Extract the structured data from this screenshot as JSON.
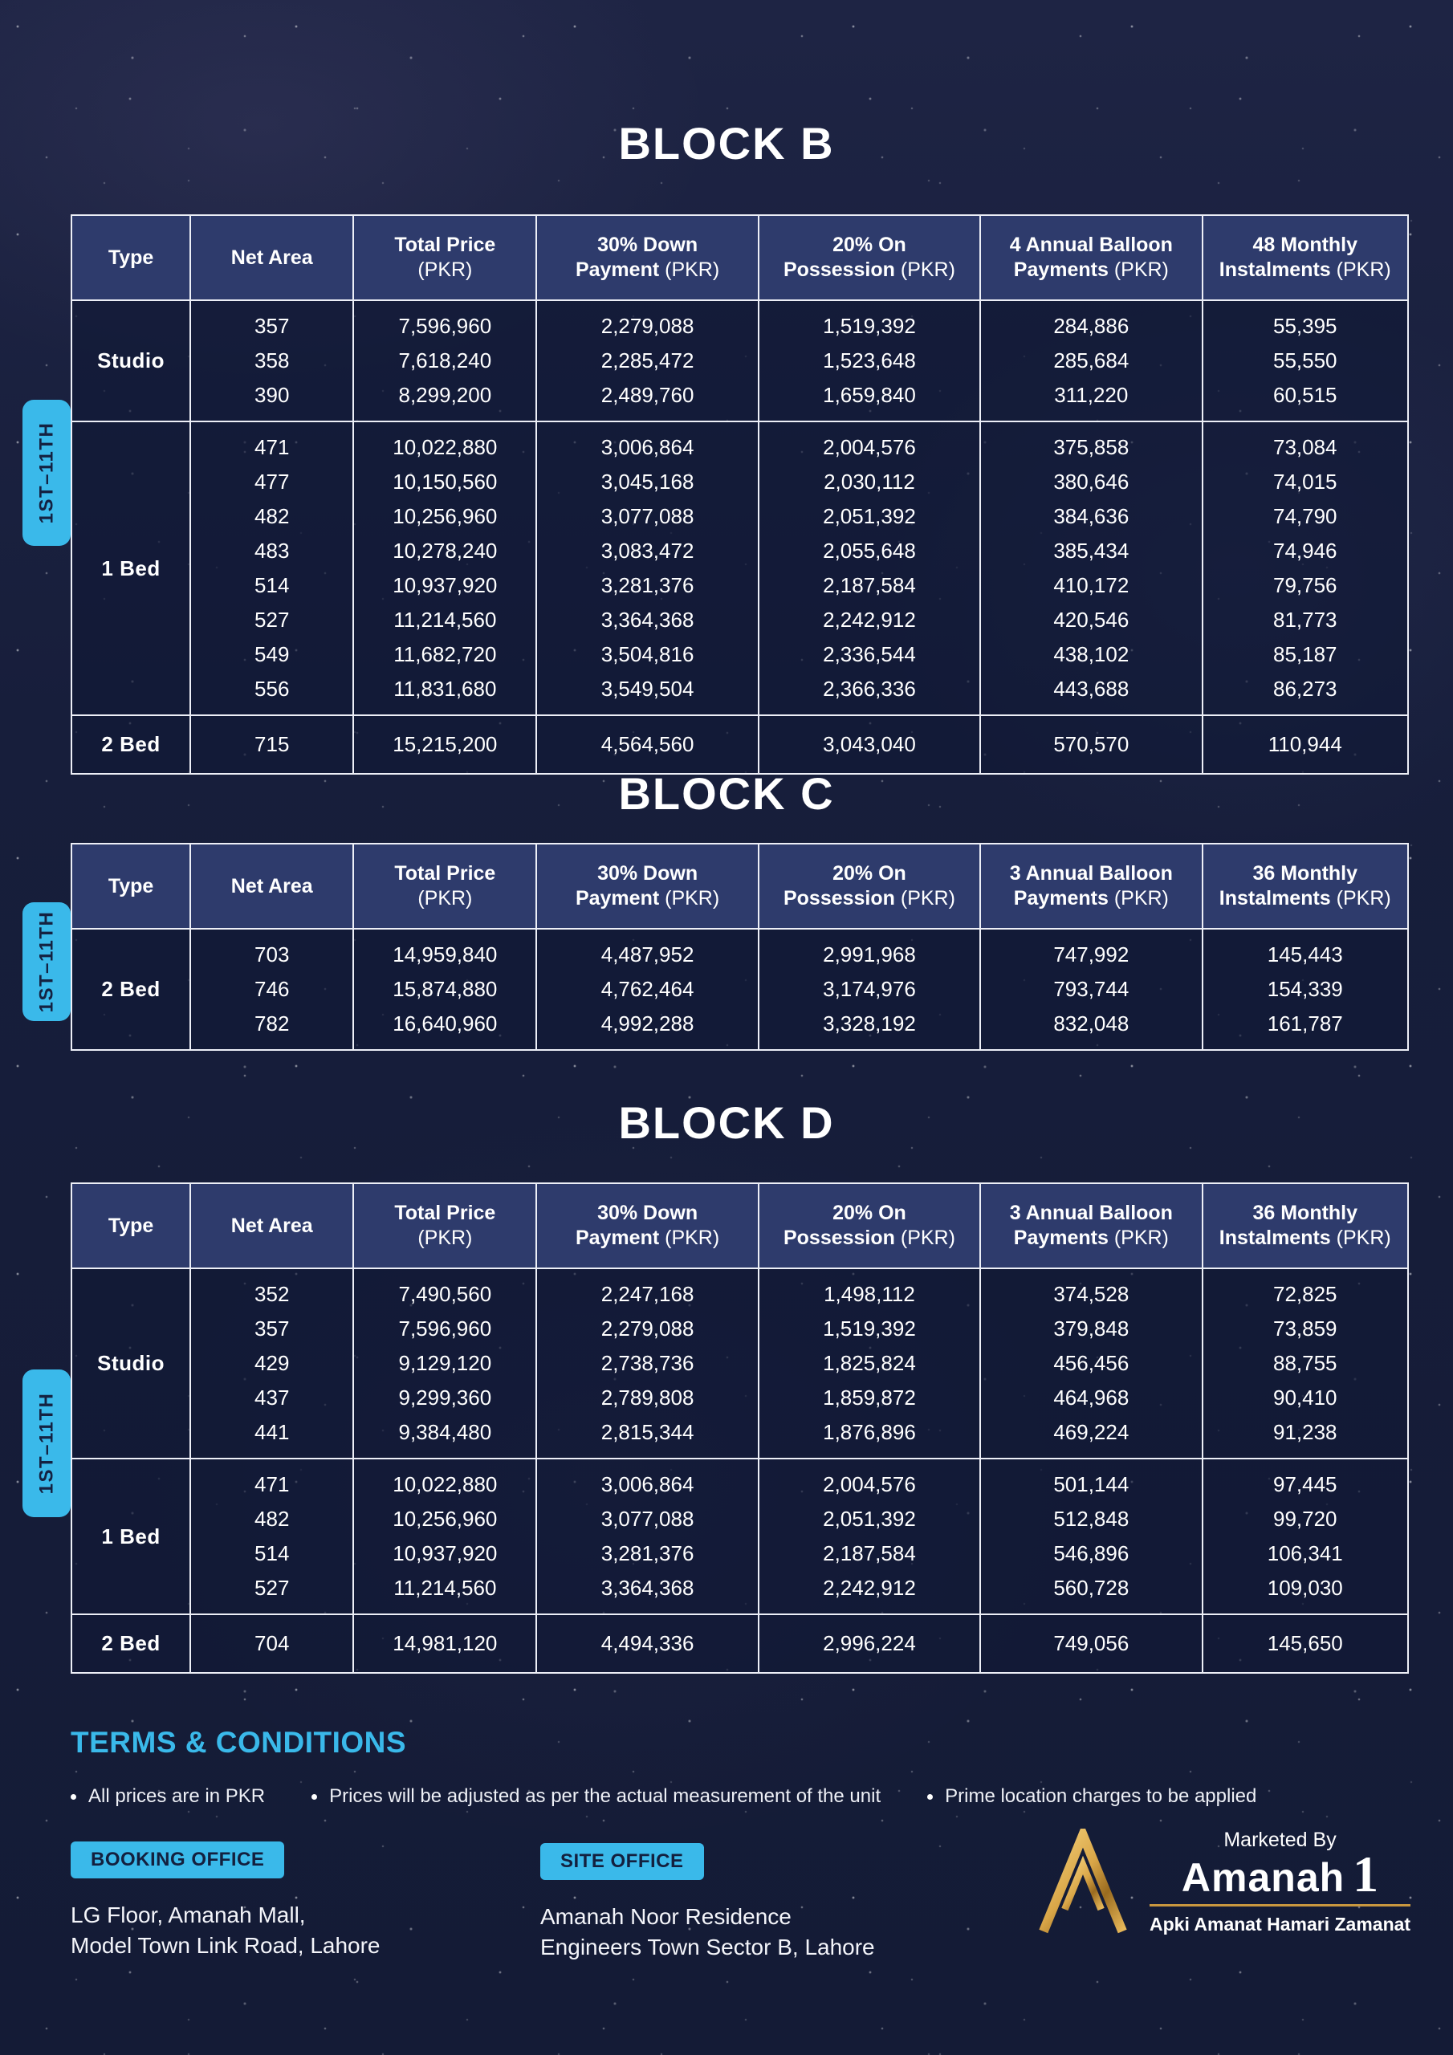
{
  "blocks": [
    {
      "title": "BLOCK B",
      "floor_label": "1ST–11TH",
      "headers": [
        "Type",
        "Net Area",
        "Total Price\n(PKR)",
        "30% Down\nPayment (PKR)",
        "20% On\nPossession (PKR)",
        "4 Annual Balloon\nPayments (PKR)",
        "48 Monthly\nInstalments (PKR)"
      ],
      "groups": [
        {
          "type": "Studio",
          "rows": [
            [
              "357",
              "7,596,960",
              "2,279,088",
              "1,519,392",
              "284,886",
              "55,395"
            ],
            [
              "358",
              "7,618,240",
              "2,285,472",
              "1,523,648",
              "285,684",
              "55,550"
            ],
            [
              "390",
              "8,299,200",
              "2,489,760",
              "1,659,840",
              "311,220",
              "60,515"
            ]
          ]
        },
        {
          "type": "1 Bed",
          "rows": [
            [
              "471",
              "10,022,880",
              "3,006,864",
              "2,004,576",
              "375,858",
              "73,084"
            ],
            [
              "477",
              "10,150,560",
              "3,045,168",
              "2,030,112",
              "380,646",
              "74,015"
            ],
            [
              "482",
              "10,256,960",
              "3,077,088",
              "2,051,392",
              "384,636",
              "74,790"
            ],
            [
              "483",
              "10,278,240",
              "3,083,472",
              "2,055,648",
              "385,434",
              "74,946"
            ],
            [
              "514",
              "10,937,920",
              "3,281,376",
              "2,187,584",
              "410,172",
              "79,756"
            ],
            [
              "527",
              "11,214,560",
              "3,364,368",
              "2,242,912",
              "420,546",
              "81,773"
            ],
            [
              "549",
              "11,682,720",
              "3,504,816",
              "2,336,544",
              "438,102",
              "85,187"
            ],
            [
              "556",
              "11,831,680",
              "3,549,504",
              "2,366,336",
              "443,688",
              "86,273"
            ]
          ]
        },
        {
          "type": "2 Bed",
          "rows": [
            [
              "715",
              "15,215,200",
              "4,564,560",
              "3,043,040",
              "570,570",
              "110,944"
            ]
          ]
        }
      ]
    },
    {
      "title": "BLOCK C",
      "floor_label": "1ST–11TH",
      "headers": [
        "Type",
        "Net Area",
        "Total Price\n(PKR)",
        "30% Down\nPayment (PKR)",
        "20% On\nPossession (PKR)",
        "3 Annual Balloon\nPayments (PKR)",
        "36 Monthly\nInstalments (PKR)"
      ],
      "groups": [
        {
          "type": "2 Bed",
          "rows": [
            [
              "703",
              "14,959,840",
              "4,487,952",
              "2,991,968",
              "747,992",
              "145,443"
            ],
            [
              "746",
              "15,874,880",
              "4,762,464",
              "3,174,976",
              "793,744",
              "154,339"
            ],
            [
              "782",
              "16,640,960",
              "4,992,288",
              "3,328,192",
              "832,048",
              "161,787"
            ]
          ]
        }
      ]
    },
    {
      "title": "BLOCK D",
      "floor_label": "1ST–11TH",
      "headers": [
        "Type",
        "Net Area",
        "Total Price\n(PKR)",
        "30% Down\nPayment (PKR)",
        "20% On\nPossession (PKR)",
        "3 Annual Balloon\nPayments (PKR)",
        "36 Monthly\nInstalments (PKR)"
      ],
      "groups": [
        {
          "type": "Studio",
          "rows": [
            [
              "352",
              "7,490,560",
              "2,247,168",
              "1,498,112",
              "374,528",
              "72,825"
            ],
            [
              "357",
              "7,596,960",
              "2,279,088",
              "1,519,392",
              "379,848",
              "73,859"
            ],
            [
              "429",
              "9,129,120",
              "2,738,736",
              "1,825,824",
              "456,456",
              "88,755"
            ],
            [
              "437",
              "9,299,360",
              "2,789,808",
              "1,859,872",
              "464,968",
              "90,410"
            ],
            [
              "441",
              "9,384,480",
              "2,815,344",
              "1,876,896",
              "469,224",
              "91,238"
            ]
          ]
        },
        {
          "type": "1 Bed",
          "rows": [
            [
              "471",
              "10,022,880",
              "3,006,864",
              "2,004,576",
              "501,144",
              "97,445"
            ],
            [
              "482",
              "10,256,960",
              "3,077,088",
              "2,051,392",
              "512,848",
              "99,720"
            ],
            [
              "514",
              "10,937,920",
              "3,281,376",
              "2,187,584",
              "546,896",
              "106,341"
            ],
            [
              "527",
              "11,214,560",
              "3,364,368",
              "2,242,912",
              "560,728",
              "109,030"
            ]
          ]
        },
        {
          "type": "2 Bed",
          "rows": [
            [
              "704",
              "14,981,120",
              "4,494,336",
              "2,996,224",
              "749,056",
              "145,650"
            ]
          ]
        }
      ]
    }
  ],
  "terms": {
    "heading": "TERMS & CONDITIONS",
    "items": [
      "All prices are in PKR",
      "Prices will be adjusted as per the actual measurement of the unit",
      "Prime location charges to be applied"
    ]
  },
  "offices": [
    {
      "badge": "BOOKING OFFICE",
      "line1": "LG Floor, Amanah Mall,",
      "line2": "Model Town Link Road, Lahore"
    },
    {
      "badge": "SITE OFFICE",
      "line1": "Amanah Noor Residence",
      "line2": "Engineers Town Sector B, Lahore"
    }
  ],
  "marketed_by": {
    "label": "Marketed By",
    "brand": "Amanah",
    "brand_suffix": "1",
    "tagline": "Apki Amanat Hamari Zamanat"
  },
  "icons": {
    "logo": "amanah-triangle-logo"
  },
  "colors": {
    "accent_cyan": "#3ab9ea",
    "gold": "#c9973f",
    "header_blue": "#2e3b6c",
    "page_bg": "#161d3a",
    "border_white": "#edeff7"
  }
}
